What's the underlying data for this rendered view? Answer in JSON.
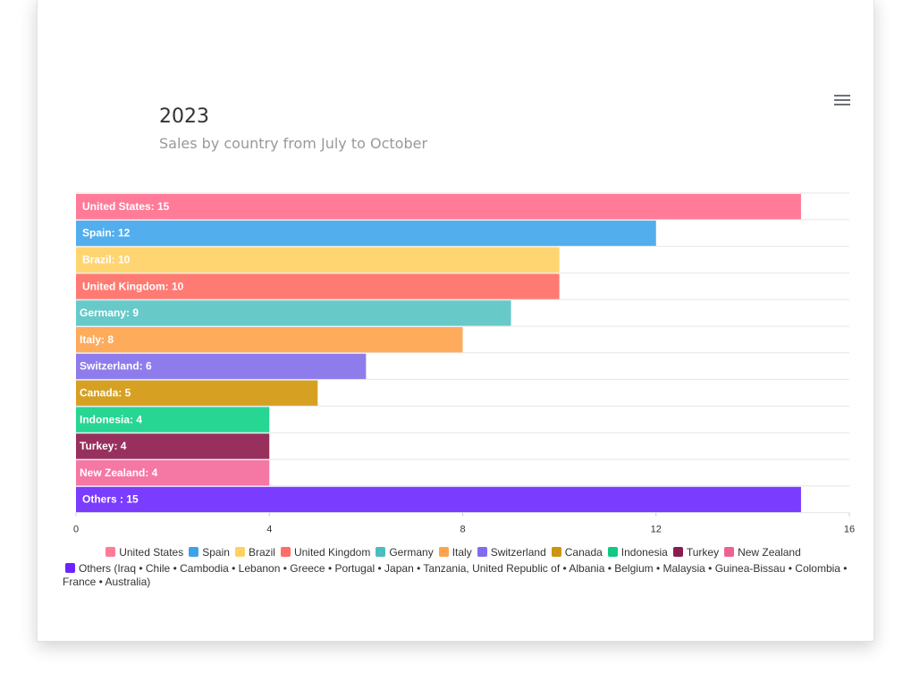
{
  "header": {
    "title": "2023",
    "subtitle": "Sales by country from July to October",
    "menu_icon": "hamburger-menu-icon"
  },
  "chart_data": {
    "type": "bar",
    "orientation": "horizontal",
    "categories": [
      "United States",
      "Spain",
      "Brazil",
      "United Kingdom",
      "Germany",
      "Italy",
      "Switzerland",
      "Canada",
      "Indonesia",
      "Turkey",
      "New Zealand",
      "Others "
    ],
    "values": [
      15,
      12,
      10,
      10,
      9,
      8,
      6,
      5,
      4,
      4,
      4,
      15
    ],
    "colors": [
      "#ff7b97",
      "#52aeed",
      "#ffd572",
      "#ff7a72",
      "#68c9c9",
      "#ffab5c",
      "#8e7ced",
      "#d6a023",
      "#27d693",
      "#98305e",
      "#f577a3",
      "#7a3cff"
    ],
    "data_labels": [
      "United States: 15",
      "Spain: 12",
      "Brazil: 10",
      "United Kingdom: 10",
      "Germany: 9",
      "Italy: 8",
      "Switzerland: 6",
      "Canada: 5",
      "Indonesia: 4",
      "Turkey: 4",
      "New Zealand: 4",
      "Others : 15"
    ],
    "xlim": [
      0,
      16
    ],
    "x_ticks": [
      0,
      4,
      8,
      12,
      16
    ],
    "x_tick_labels": [
      "0",
      "4",
      "8",
      "12",
      "16"
    ],
    "grid": true,
    "legend_position": "bottom"
  },
  "legend": {
    "items": [
      {
        "label": "United States",
        "color": "#ff7b97"
      },
      {
        "label": "Spain",
        "color": "#3ea2ea"
      },
      {
        "label": "Brazil",
        "color": "#ffd162"
      },
      {
        "label": "United Kingdom",
        "color": "#ff6e66"
      },
      {
        "label": "Germany",
        "color": "#4cbdbd"
      },
      {
        "label": "Italy",
        "color": "#ffa24e"
      },
      {
        "label": "Switzerland",
        "color": "#7f6cee"
      },
      {
        "label": "Canada",
        "color": "#cc9411"
      },
      {
        "label": "Indonesia",
        "color": "#10c985"
      },
      {
        "label": "Turkey",
        "color": "#8c1b50"
      },
      {
        "label": "New Zealand",
        "color": "#ed628f"
      }
    ],
    "others": {
      "label": "Others (Iraq • Chile • Cambodia • Lebanon • Greece • Portugal • Japan • Tanzania, United Republic of • Albania • Belgium • Malaysia • Guinea-Bissau • Colombia • France • Australia)",
      "color": "#6b24ff"
    }
  }
}
